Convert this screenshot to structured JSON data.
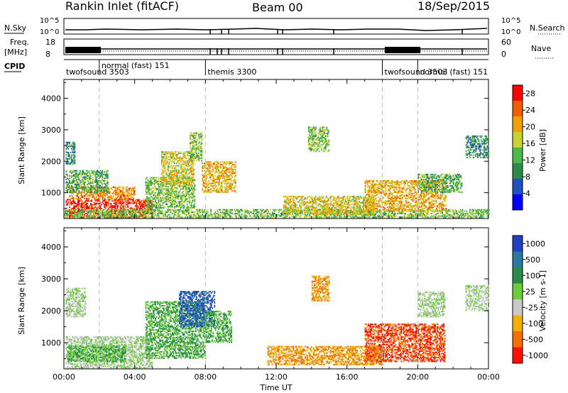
{
  "header": {
    "station": "Rankin Inlet (fitACF)",
    "beam": "Beam 00",
    "date": "18/Sep/2015"
  },
  "aux_panels": {
    "nsky": {
      "label": "N.Sky",
      "ticks": [
        "10^5",
        "10^0"
      ],
      "right_label": "N.Search",
      "right_ticks": [
        "10^5",
        "10^0"
      ]
    },
    "freq": {
      "label_top": "Freq.",
      "label_bottom": "[MHz]",
      "ticks": [
        "18",
        "8"
      ],
      "right_label": "Nave",
      "right_ticks": [
        "60",
        "0"
      ]
    },
    "cpid": {
      "label": "CPID"
    }
  },
  "cpid_segments": [
    {
      "name": "twofsound 3503",
      "start": 0.0,
      "end": 2.0
    },
    {
      "name": "normal (fast) 151",
      "start": 2.0,
      "end": 8.0
    },
    {
      "name": "themis 3300",
      "start": 8.0,
      "end": 18.0
    },
    {
      "name": "twofsound 3503",
      "start": 18.0,
      "end": 20.0
    },
    {
      "name": "normal (fast) 151",
      "start": 20.0,
      "end": 24.0
    }
  ],
  "chart_data": [
    {
      "type": "heatmap",
      "quantity": "power",
      "ylabel": "Slant Range [km]",
      "xlabel": "",
      "xlim": [
        0,
        24
      ],
      "ylim": [
        180,
        4600
      ],
      "yticks": [
        1000,
        2000,
        3000,
        4000
      ],
      "colorbar": {
        "label": "Power [dB]",
        "ticks": [
          4,
          8,
          12,
          16,
          20,
          24,
          28
        ],
        "range": [
          0,
          30
        ],
        "colors": [
          "#0000ff",
          "#2050c0",
          "#2a8a4a",
          "#4cb84c",
          "#c8d232",
          "#f0a000",
          "#f06000",
          "#ff0000"
        ]
      },
      "regions": [
        {
          "t0": 0.1,
          "t1": 5.0,
          "r0": 200,
          "r1": 800,
          "value": 27
        },
        {
          "t0": 0.3,
          "t1": 4.0,
          "r0": 800,
          "r1": 1200,
          "value": 22
        },
        {
          "t0": 0.1,
          "t1": 2.5,
          "r0": 1000,
          "r1": 1700,
          "value": 12
        },
        {
          "t0": 0.1,
          "t1": 0.6,
          "r0": 1900,
          "r1": 2600,
          "value": 10
        },
        {
          "t0": 4.6,
          "t1": 7.4,
          "r0": 500,
          "r1": 1500,
          "value": 14
        },
        {
          "t0": 5.5,
          "t1": 7.3,
          "r0": 1200,
          "r1": 2300,
          "value": 18
        },
        {
          "t0": 7.1,
          "t1": 7.8,
          "r0": 2000,
          "r1": 2900,
          "value": 14
        },
        {
          "t0": 7.8,
          "t1": 9.7,
          "r0": 1000,
          "r1": 2000,
          "value": 20
        },
        {
          "t0": 0.0,
          "t1": 24.0,
          "r0": 200,
          "r1": 450,
          "value": 14
        },
        {
          "t0": 12.4,
          "t1": 17.5,
          "r0": 300,
          "r1": 900,
          "value": 18
        },
        {
          "t0": 13.8,
          "t1": 15.0,
          "r0": 2300,
          "r1": 3100,
          "value": 14
        },
        {
          "t0": 17.0,
          "t1": 21.6,
          "r0": 400,
          "r1": 1400,
          "value": 20
        },
        {
          "t0": 20.0,
          "t1": 22.5,
          "r0": 1000,
          "r1": 1600,
          "value": 12
        },
        {
          "t0": 22.7,
          "t1": 24.0,
          "r0": 2100,
          "r1": 2800,
          "value": 10
        }
      ]
    },
    {
      "type": "heatmap",
      "quantity": "velocity",
      "ylabel": "Slant Range [km]",
      "xlabel": "Time UT",
      "xlim": [
        0,
        24
      ],
      "ylim": [
        180,
        4600
      ],
      "xticks": [
        "00:00",
        "04:00",
        "08:00",
        "12:00",
        "16:00",
        "20:00",
        "00:00"
      ],
      "xtick_values": [
        0,
        4,
        8,
        12,
        16,
        20,
        24
      ],
      "yticks": [
        1000,
        2000,
        3000,
        4000
      ],
      "colorbar": {
        "label": "Velocity [m s-1]",
        "ticks": [
          "1000",
          "500",
          "100",
          "25",
          "-25",
          "-100",
          "-500",
          "-1000"
        ],
        "colors": [
          "#2040c0",
          "#2a7aa0",
          "#2a8a4a",
          "#6ccc3c",
          "#c8c8c8",
          "#f0b000",
          "#f07000",
          "#ff1000"
        ]
      },
      "regions": [
        {
          "t0": 0.1,
          "t1": 5.0,
          "r0": 200,
          "r1": 1200,
          "value": 25
        },
        {
          "t0": 0.2,
          "t1": 3.5,
          "r0": 400,
          "r1": 900,
          "value": 100
        },
        {
          "t0": 0.1,
          "t1": 1.2,
          "r0": 1800,
          "r1": 2700,
          "value": 25
        },
        {
          "t0": 4.6,
          "t1": 8.0,
          "r0": 500,
          "r1": 2300,
          "value": 100
        },
        {
          "t0": 6.5,
          "t1": 8.5,
          "r0": 1500,
          "r1": 2600,
          "value": 500
        },
        {
          "t0": 8.0,
          "t1": 9.5,
          "r0": 1000,
          "r1": 2000,
          "value": 100
        },
        {
          "t0": 11.5,
          "t1": 18.0,
          "r0": 300,
          "r1": 900,
          "value": -100
        },
        {
          "t0": 14.0,
          "t1": 15.0,
          "r0": 2300,
          "r1": 3100,
          "value": -100
        },
        {
          "t0": 17.0,
          "t1": 21.5,
          "r0": 400,
          "r1": 1600,
          "value": -500
        },
        {
          "t0": 20.0,
          "t1": 21.5,
          "r0": 1800,
          "r1": 2600,
          "value": 25
        },
        {
          "t0": 22.7,
          "t1": 24.0,
          "r0": 2000,
          "r1": 2800,
          "value": 25
        }
      ]
    }
  ]
}
